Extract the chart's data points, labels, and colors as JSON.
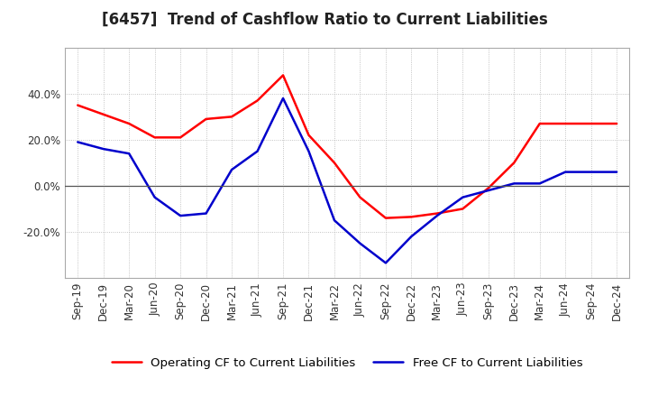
{
  "title": "[6457]  Trend of Cashflow Ratio to Current Liabilities",
  "x_labels": [
    "Sep-19",
    "Dec-19",
    "Mar-20",
    "Jun-20",
    "Sep-20",
    "Dec-20",
    "Mar-21",
    "Jun-21",
    "Sep-21",
    "Dec-21",
    "Mar-22",
    "Jun-22",
    "Sep-22",
    "Dec-22",
    "Mar-23",
    "Jun-23",
    "Sep-23",
    "Dec-23",
    "Mar-24",
    "Jun-24",
    "Sep-24",
    "Dec-24"
  ],
  "operating_cf": [
    0.35,
    0.31,
    0.27,
    0.21,
    0.21,
    0.29,
    0.3,
    0.37,
    0.48,
    0.22,
    0.1,
    -0.05,
    -0.14,
    -0.135,
    -0.12,
    -0.1,
    -0.01,
    0.1,
    0.27,
    0.27,
    0.27,
    0.27
  ],
  "free_cf": [
    0.19,
    0.16,
    0.14,
    -0.05,
    -0.13,
    -0.12,
    0.07,
    0.15,
    0.38,
    0.15,
    -0.15,
    -0.25,
    -0.335,
    -0.22,
    -0.13,
    -0.05,
    -0.02,
    0.01,
    0.01,
    0.06,
    0.06,
    0.06
  ],
  "operating_color": "#FF0000",
  "free_color": "#0000CC",
  "background_color": "#FFFFFF",
  "plot_bg_color": "#FFFFFF",
  "grid_color": "#AAAAAA",
  "ylim": [
    -0.4,
    0.6
  ],
  "yticks": [
    -0.2,
    0.0,
    0.2,
    0.4
  ],
  "legend_labels": [
    "Operating CF to Current Liabilities",
    "Free CF to Current Liabilities"
  ],
  "title_fontsize": 12,
  "tick_fontsize": 8.5,
  "legend_fontsize": 9.5
}
